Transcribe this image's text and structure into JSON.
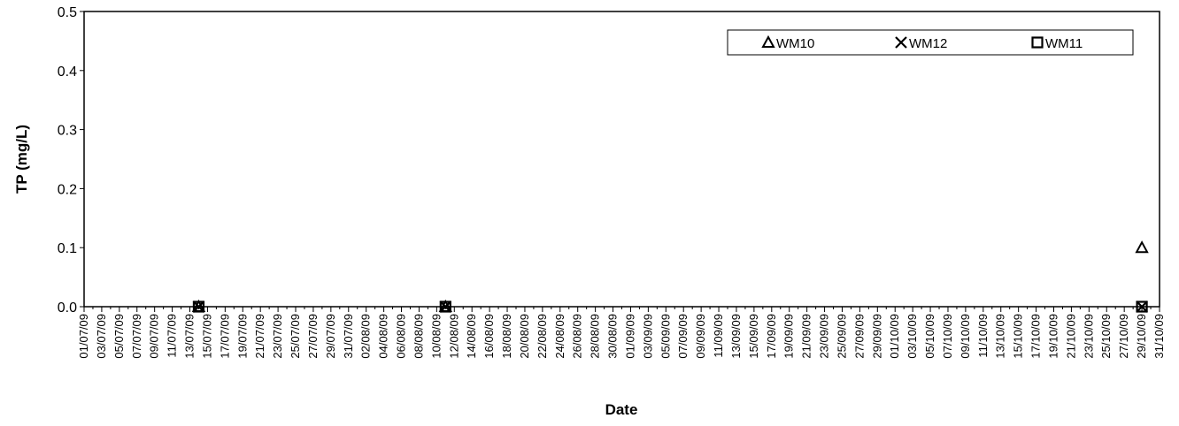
{
  "chart_data": {
    "type": "scatter",
    "title": "",
    "xlabel": "Date",
    "ylabel": "TP (mg/L)",
    "ylim": [
      0,
      0.5
    ],
    "yticks": [
      "0.0",
      "0.1",
      "0.2",
      "0.3",
      "0.4",
      "0.5"
    ],
    "xlim": [
      "01/07/09",
      "31/10/09"
    ],
    "xtick_interval_days": 2,
    "xtick_labels": [
      "01/07/09",
      "03/07/09",
      "05/07/09",
      "07/07/09",
      "09/07/09",
      "11/07/09",
      "13/07/09",
      "15/07/09",
      "17/07/09",
      "19/07/09",
      "21/07/09",
      "23/07/09",
      "25/07/09",
      "27/07/09",
      "29/07/09",
      "31/07/09",
      "02/08/09",
      "04/08/09",
      "06/08/09",
      "08/08/09",
      "10/08/09",
      "12/08/09",
      "14/08/09",
      "16/08/09",
      "18/08/09",
      "20/08/09",
      "22/08/09",
      "24/08/09",
      "26/08/09",
      "28/08/09",
      "30/08/09",
      "01/09/09",
      "03/09/09",
      "05/09/09",
      "07/09/09",
      "09/09/09",
      "11/09/09",
      "13/09/09",
      "15/09/09",
      "17/09/09",
      "19/09/09",
      "21/09/09",
      "23/09/09",
      "25/09/09",
      "27/09/09",
      "29/09/09",
      "01/10/09",
      "03/10/09",
      "05/10/09",
      "07/10/09",
      "09/10/09",
      "11/10/09",
      "13/10/09",
      "15/10/09",
      "17/10/09",
      "19/10/09",
      "21/10/09",
      "23/10/09",
      "25/10/09",
      "27/10/09",
      "29/10/09",
      "31/10/09"
    ],
    "legend_position": "top-right",
    "grid": false,
    "series": [
      {
        "name": "WM10",
        "marker": "triangle",
        "points": [
          {
            "x": "14/07/09",
            "y": 0.0
          },
          {
            "x": "11/08/09",
            "y": 0.0
          },
          {
            "x": "29/10/09",
            "y": 0.1
          }
        ]
      },
      {
        "name": "WM12",
        "marker": "cross",
        "points": [
          {
            "x": "14/07/09",
            "y": 0.0
          },
          {
            "x": "11/08/09",
            "y": 0.0
          },
          {
            "x": "29/10/09",
            "y": 0.0
          }
        ]
      },
      {
        "name": "WM11",
        "marker": "square",
        "points": [
          {
            "x": "14/07/09",
            "y": 0.0
          },
          {
            "x": "11/08/09",
            "y": 0.0
          },
          {
            "x": "29/10/09",
            "y": 0.0
          }
        ]
      }
    ]
  }
}
